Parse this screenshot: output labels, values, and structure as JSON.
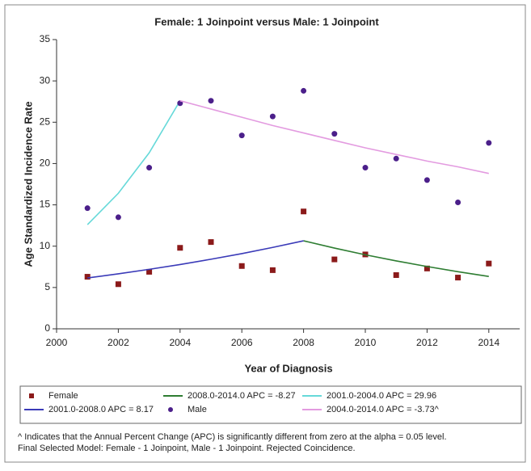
{
  "chart_data": {
    "type": "scatter",
    "title": "Female: 1 Joinpoint  versus  Male: 1 Joinpoint",
    "x_label": "Year of Diagnosis",
    "y_label": "Age Standardized Incidence Rate",
    "xlim": [
      2000,
      2015
    ],
    "xticks": [
      2000,
      2002,
      2004,
      2006,
      2008,
      2010,
      2012,
      2014
    ],
    "ylim": [
      0,
      35
    ],
    "yticks": [
      0,
      5,
      10,
      15,
      20,
      25,
      30,
      35
    ],
    "series": [
      {
        "name": "Female",
        "color": "#8b1a1a",
        "style": "marker",
        "marker": "square",
        "x": [
          2001,
          2002,
          2003,
          2004,
          2005,
          2006,
          2007,
          2008,
          2009,
          2010,
          2011,
          2012,
          2013,
          2014
        ],
        "values": [
          6.3,
          5.4,
          6.9,
          9.8,
          10.5,
          7.6,
          7.1,
          14.2,
          8.4,
          9.0,
          6.5,
          7.3,
          6.2,
          7.9
        ]
      },
      {
        "name": "2008.0-2014.0 APC = -8.27",
        "color": "#2e7d32",
        "style": "line",
        "x": [
          2008,
          2009,
          2010,
          2011,
          2012,
          2013,
          2014
        ],
        "values": [
          10.65,
          9.77,
          8.96,
          8.22,
          7.54,
          6.91,
          6.34
        ]
      },
      {
        "name": "2001.0-2004.0 APC = 29.96",
        "color": "#66d9d9",
        "style": "line",
        "x": [
          2001,
          2002,
          2003,
          2004
        ],
        "values": [
          12.6,
          16.4,
          21.3,
          27.6
        ]
      },
      {
        "name": "2001.0-2008.0 APC =  8.17",
        "color": "#3a3ab8",
        "style": "line",
        "x": [
          2001,
          2002,
          2003,
          2004,
          2005,
          2006,
          2007,
          2008
        ],
        "values": [
          6.15,
          6.65,
          7.2,
          7.78,
          8.42,
          9.1,
          9.85,
          10.65
        ]
      },
      {
        "name": "Male",
        "color": "#4b1f8a",
        "style": "marker",
        "marker": "circle",
        "x": [
          2001,
          2002,
          2003,
          2004,
          2005,
          2006,
          2007,
          2008,
          2009,
          2010,
          2011,
          2012,
          2013,
          2014
        ],
        "values": [
          14.6,
          13.5,
          19.5,
          27.3,
          27.6,
          23.4,
          25.7,
          28.8,
          23.6,
          19.5,
          20.6,
          18.0,
          15.3,
          22.5
        ]
      },
      {
        "name": "2004.0-2014.0 APC = -3.73^",
        "color": "#e39be0",
        "style": "line",
        "x": [
          2004,
          2005,
          2006,
          2007,
          2008,
          2009,
          2010,
          2011,
          2012,
          2013,
          2014
        ],
        "values": [
          27.6,
          26.6,
          25.6,
          24.6,
          23.7,
          22.8,
          21.9,
          21.1,
          20.3,
          19.6,
          18.8
        ]
      }
    ],
    "notes": [
      "^ Indicates that the Annual Percent Change (APC) is significantly different from zero at the alpha = 0.05 level.",
      "Final Selected Model: Female - 1 Joinpoint, Male - 1 Joinpoint. Rejected Coincidence."
    ]
  }
}
